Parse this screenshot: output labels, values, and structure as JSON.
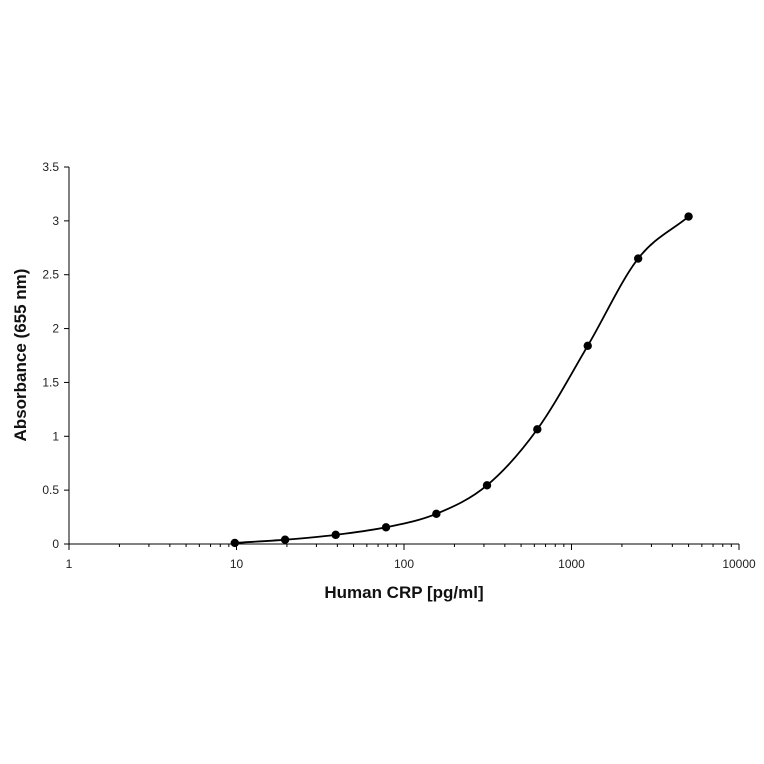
{
  "chart_data": {
    "type": "scatter",
    "title": "",
    "xlabel": "Human CRP [pg/ml]",
    "ylabel": "Absorbance (655 nm)",
    "x_scale": "log",
    "xlim": [
      1,
      10000
    ],
    "ylim": [
      0,
      3.5
    ],
    "x_tick_labels": [
      "1",
      "10",
      "100",
      "1000",
      "10000"
    ],
    "y_tick_labels": [
      "0",
      "0.5",
      "1",
      "1.5",
      "2",
      "2.5",
      "3",
      "3.5"
    ],
    "grid": false,
    "legend": "none",
    "series": [
      {
        "x": [
          9.77,
          19.5,
          39.1,
          78.1,
          156,
          313,
          625,
          1250,
          2500,
          5000
        ],
        "y": [
          0.01,
          0.04,
          0.085,
          0.155,
          0.28,
          0.545,
          1.065,
          1.84,
          2.65,
          3.04
        ],
        "fit_curve": true
      }
    ],
    "colors": {
      "line": "#000000",
      "marker": "#000000",
      "axis": "#000000"
    }
  }
}
